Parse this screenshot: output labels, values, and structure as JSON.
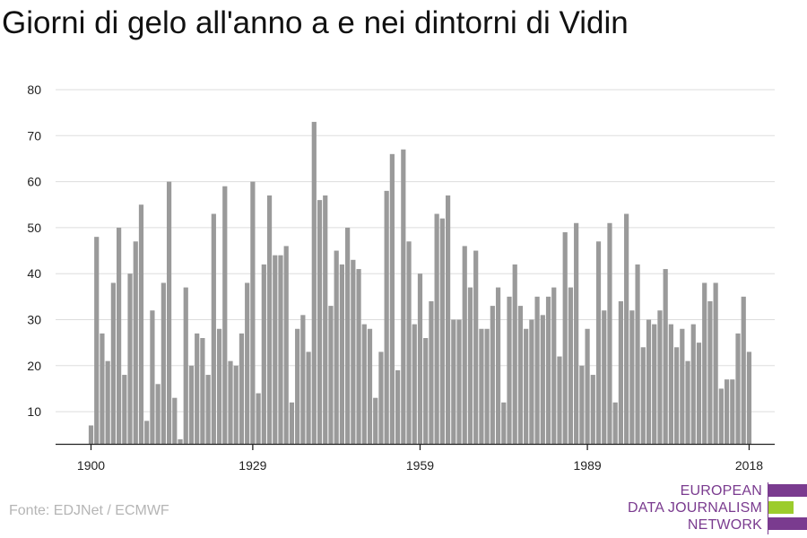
{
  "title": "Giorni di gelo all'anno a e nei dintorni di Vidin",
  "source": "Fonte: EDJNet / ECMWF",
  "logo": {
    "lines": [
      "EUROPEAN",
      "DATA JOURNALISM",
      "NETWORK"
    ],
    "colors": {
      "text": "#7a3b8f",
      "bar1": "#7a3b8f",
      "bar2": "#9ccc2c",
      "bar3": "#7a3b8f"
    }
  },
  "chart_data": {
    "type": "bar",
    "title": "Giorni di gelo all'anno a e nei dintorni di Vidin",
    "xlabel": "",
    "ylabel": "",
    "ylim": [
      3,
      80
    ],
    "y_ticks": [
      10,
      20,
      30,
      40,
      50,
      60,
      70,
      80
    ],
    "x_ticks": [
      1900,
      1929,
      1959,
      1989,
      2018
    ],
    "grid": true,
    "bar_color": "#9a9a9a",
    "x": [
      1900,
      1901,
      1902,
      1903,
      1904,
      1905,
      1906,
      1907,
      1908,
      1909,
      1910,
      1911,
      1912,
      1913,
      1914,
      1915,
      1916,
      1917,
      1918,
      1919,
      1920,
      1921,
      1922,
      1923,
      1924,
      1925,
      1926,
      1927,
      1928,
      1929,
      1930,
      1931,
      1932,
      1933,
      1934,
      1935,
      1936,
      1937,
      1938,
      1939,
      1940,
      1941,
      1942,
      1943,
      1944,
      1945,
      1946,
      1947,
      1948,
      1949,
      1950,
      1951,
      1952,
      1953,
      1954,
      1955,
      1956,
      1957,
      1958,
      1959,
      1960,
      1961,
      1962,
      1963,
      1964,
      1965,
      1966,
      1967,
      1968,
      1969,
      1970,
      1971,
      1972,
      1973,
      1974,
      1975,
      1976,
      1977,
      1978,
      1979,
      1980,
      1981,
      1982,
      1983,
      1984,
      1985,
      1986,
      1987,
      1988,
      1989,
      1990,
      1991,
      1992,
      1993,
      1994,
      1995,
      1996,
      1997,
      1998,
      1999,
      2000,
      2001,
      2002,
      2003,
      2004,
      2005,
      2006,
      2007,
      2008,
      2009,
      2010,
      2011,
      2012,
      2013,
      2014,
      2015,
      2016,
      2017,
      2018
    ],
    "values": [
      7,
      48,
      27,
      21,
      38,
      50,
      18,
      40,
      47,
      55,
      8,
      32,
      16,
      38,
      60,
      13,
      4,
      37,
      20,
      27,
      26,
      18,
      53,
      28,
      59,
      21,
      20,
      27,
      38,
      60,
      14,
      42,
      57,
      44,
      44,
      46,
      12,
      28,
      31,
      23,
      73,
      56,
      57,
      33,
      45,
      42,
      50,
      43,
      41,
      29,
      28,
      13,
      23,
      58,
      66,
      19,
      67,
      47,
      29,
      40,
      26,
      34,
      53,
      52,
      57,
      30,
      30,
      46,
      37,
      45,
      28,
      28,
      33,
      37,
      12,
      35,
      42,
      33,
      28,
      30,
      35,
      31,
      35,
      37,
      22,
      49,
      37,
      51,
      20,
      28,
      18,
      47,
      32,
      51,
      12,
      34,
      53,
      32,
      42,
      24,
      30,
      29,
      32,
      41,
      29,
      24,
      28,
      21,
      29,
      25,
      38,
      34,
      38,
      15,
      17,
      17,
      27,
      35,
      23
    ]
  }
}
